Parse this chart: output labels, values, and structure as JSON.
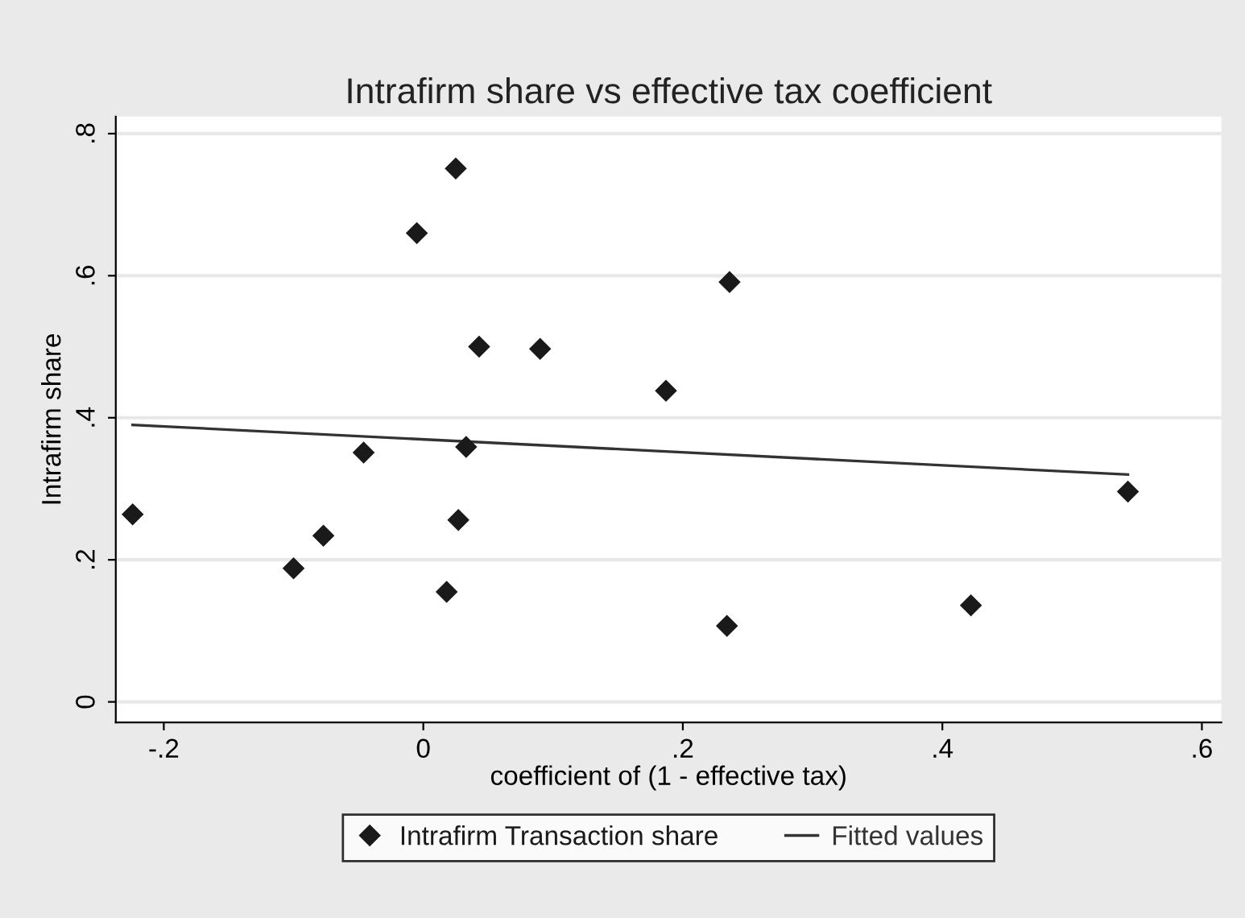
{
  "chart_data": {
    "type": "scatter",
    "title": "Intrafirm share vs effective tax coefficient",
    "xlabel": "coefficient of (1 - effective tax)",
    "ylabel": "Intrafirm share",
    "xlim": [
      -0.237,
      0.615
    ],
    "ylim": [
      -0.029,
      0.824
    ],
    "xticks": [
      {
        "value": -0.2,
        "label": "-.2"
      },
      {
        "value": 0,
        "label": "0"
      },
      {
        "value": 0.2,
        "label": ".2"
      },
      {
        "value": 0.4,
        "label": ".4"
      },
      {
        "value": 0.6,
        "label": ".6"
      }
    ],
    "yticks": [
      {
        "value": 0,
        "label": "0"
      },
      {
        "value": 0.2,
        "label": ".2"
      },
      {
        "value": 0.4,
        "label": ".4"
      },
      {
        "value": 0.6,
        "label": ".6"
      },
      {
        "value": 0.8,
        "label": ".8"
      }
    ],
    "grid": "y",
    "legend": "bottom",
    "marker": "diamond",
    "series": [
      {
        "name": "Intrafirm Transaction share",
        "color": "#1a1a1a",
        "x": [
          -0.224,
          -0.1,
          -0.077,
          -0.046,
          -0.005,
          0.025,
          0.043,
          0.09,
          0.033,
          0.027,
          0.018,
          0.187,
          0.236,
          0.234,
          0.422,
          0.543
        ],
        "values": [
          0.264,
          0.188,
          0.234,
          0.351,
          0.66,
          0.751,
          0.5,
          0.497,
          0.359,
          0.256,
          0.155,
          0.438,
          0.591,
          0.107,
          0.136,
          0.296
        ]
      },
      {
        "name": "Fitted values",
        "type": "line",
        "color": "#333333",
        "marker": "none",
        "line_style": "solid",
        "x": [
          -0.224,
          0.543
        ],
        "values": [
          0.39,
          0.32
        ]
      }
    ]
  }
}
